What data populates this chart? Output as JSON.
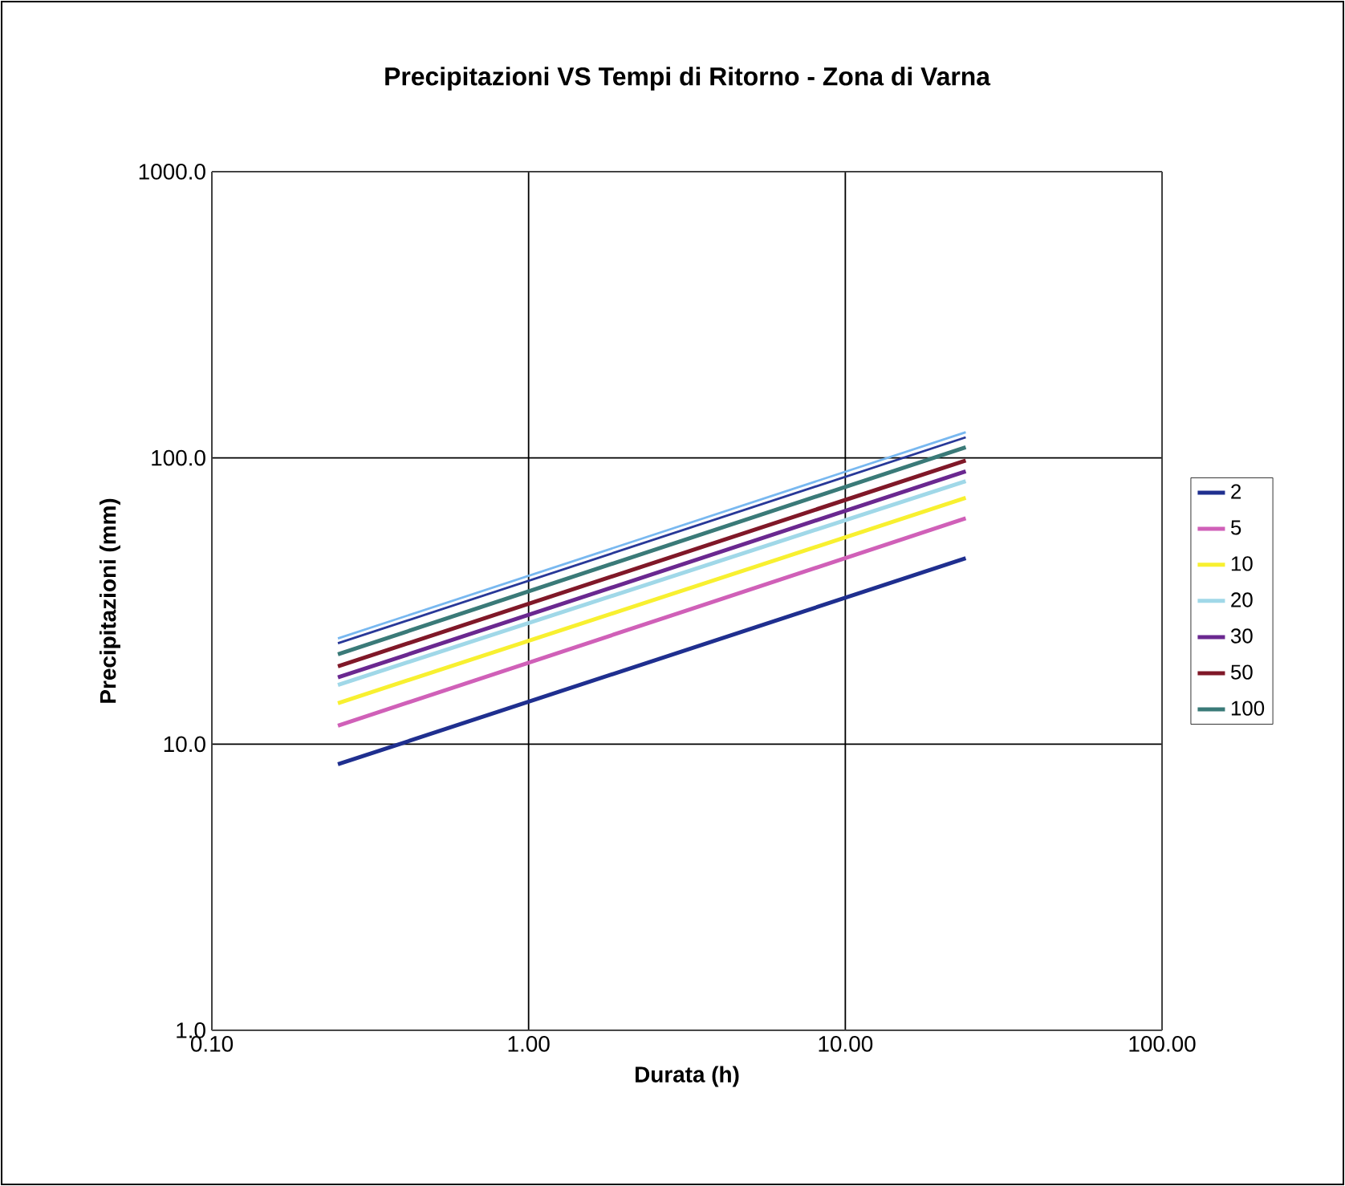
{
  "chart_data": {
    "type": "line",
    "title": "Precipitazioni VS Tempi di Ritorno - Zona di Varna",
    "xlabel": "Durata (h)",
    "ylabel": "Precipitazioni (mm)",
    "log": "xy",
    "grid": true,
    "legend": "right",
    "marker": "none",
    "line_style": "solid",
    "xlim": [
      0.1,
      100
    ],
    "ylim": [
      1,
      1000
    ],
    "xticks": [
      {
        "value": 0.1,
        "label": "0.10"
      },
      {
        "value": 1,
        "label": "1.00"
      },
      {
        "value": 10,
        "label": "10.00"
      },
      {
        "value": 100,
        "label": "100.00"
      }
    ],
    "yticks": [
      {
        "value": 1,
        "label": "1.0"
      },
      {
        "value": 10,
        "label": "10.0"
      },
      {
        "value": 100,
        "label": "100.0"
      },
      {
        "value": 1000,
        "label": "1000.0"
      }
    ],
    "x": [
      0.25,
      24
    ],
    "series": [
      {
        "name": "2",
        "color": "#1f2f8f",
        "values": [
          8.5,
          44.6
        ]
      },
      {
        "name": "5",
        "color": "#d060b8",
        "values": [
          11.6,
          61.5
        ]
      },
      {
        "name": "10",
        "color": "#f8f030",
        "values": [
          13.9,
          72.5
        ]
      },
      {
        "name": "20",
        "color": "#a0d8e8",
        "values": [
          16.1,
          83
        ]
      },
      {
        "name": "30",
        "color": "#6a2890",
        "values": [
          17.1,
          89.8
        ]
      },
      {
        "name": "50",
        "color": "#801828",
        "values": [
          18.7,
          98
        ]
      },
      {
        "name": "100",
        "color": "#3a7a78",
        "values": [
          20.6,
          109
        ]
      },
      {
        "color": "#283898",
        "values": [
          22.5,
          118
        ]
      },
      {
        "color": "#78b8f0",
        "values": [
          23.4,
          123
        ]
      }
    ]
  }
}
